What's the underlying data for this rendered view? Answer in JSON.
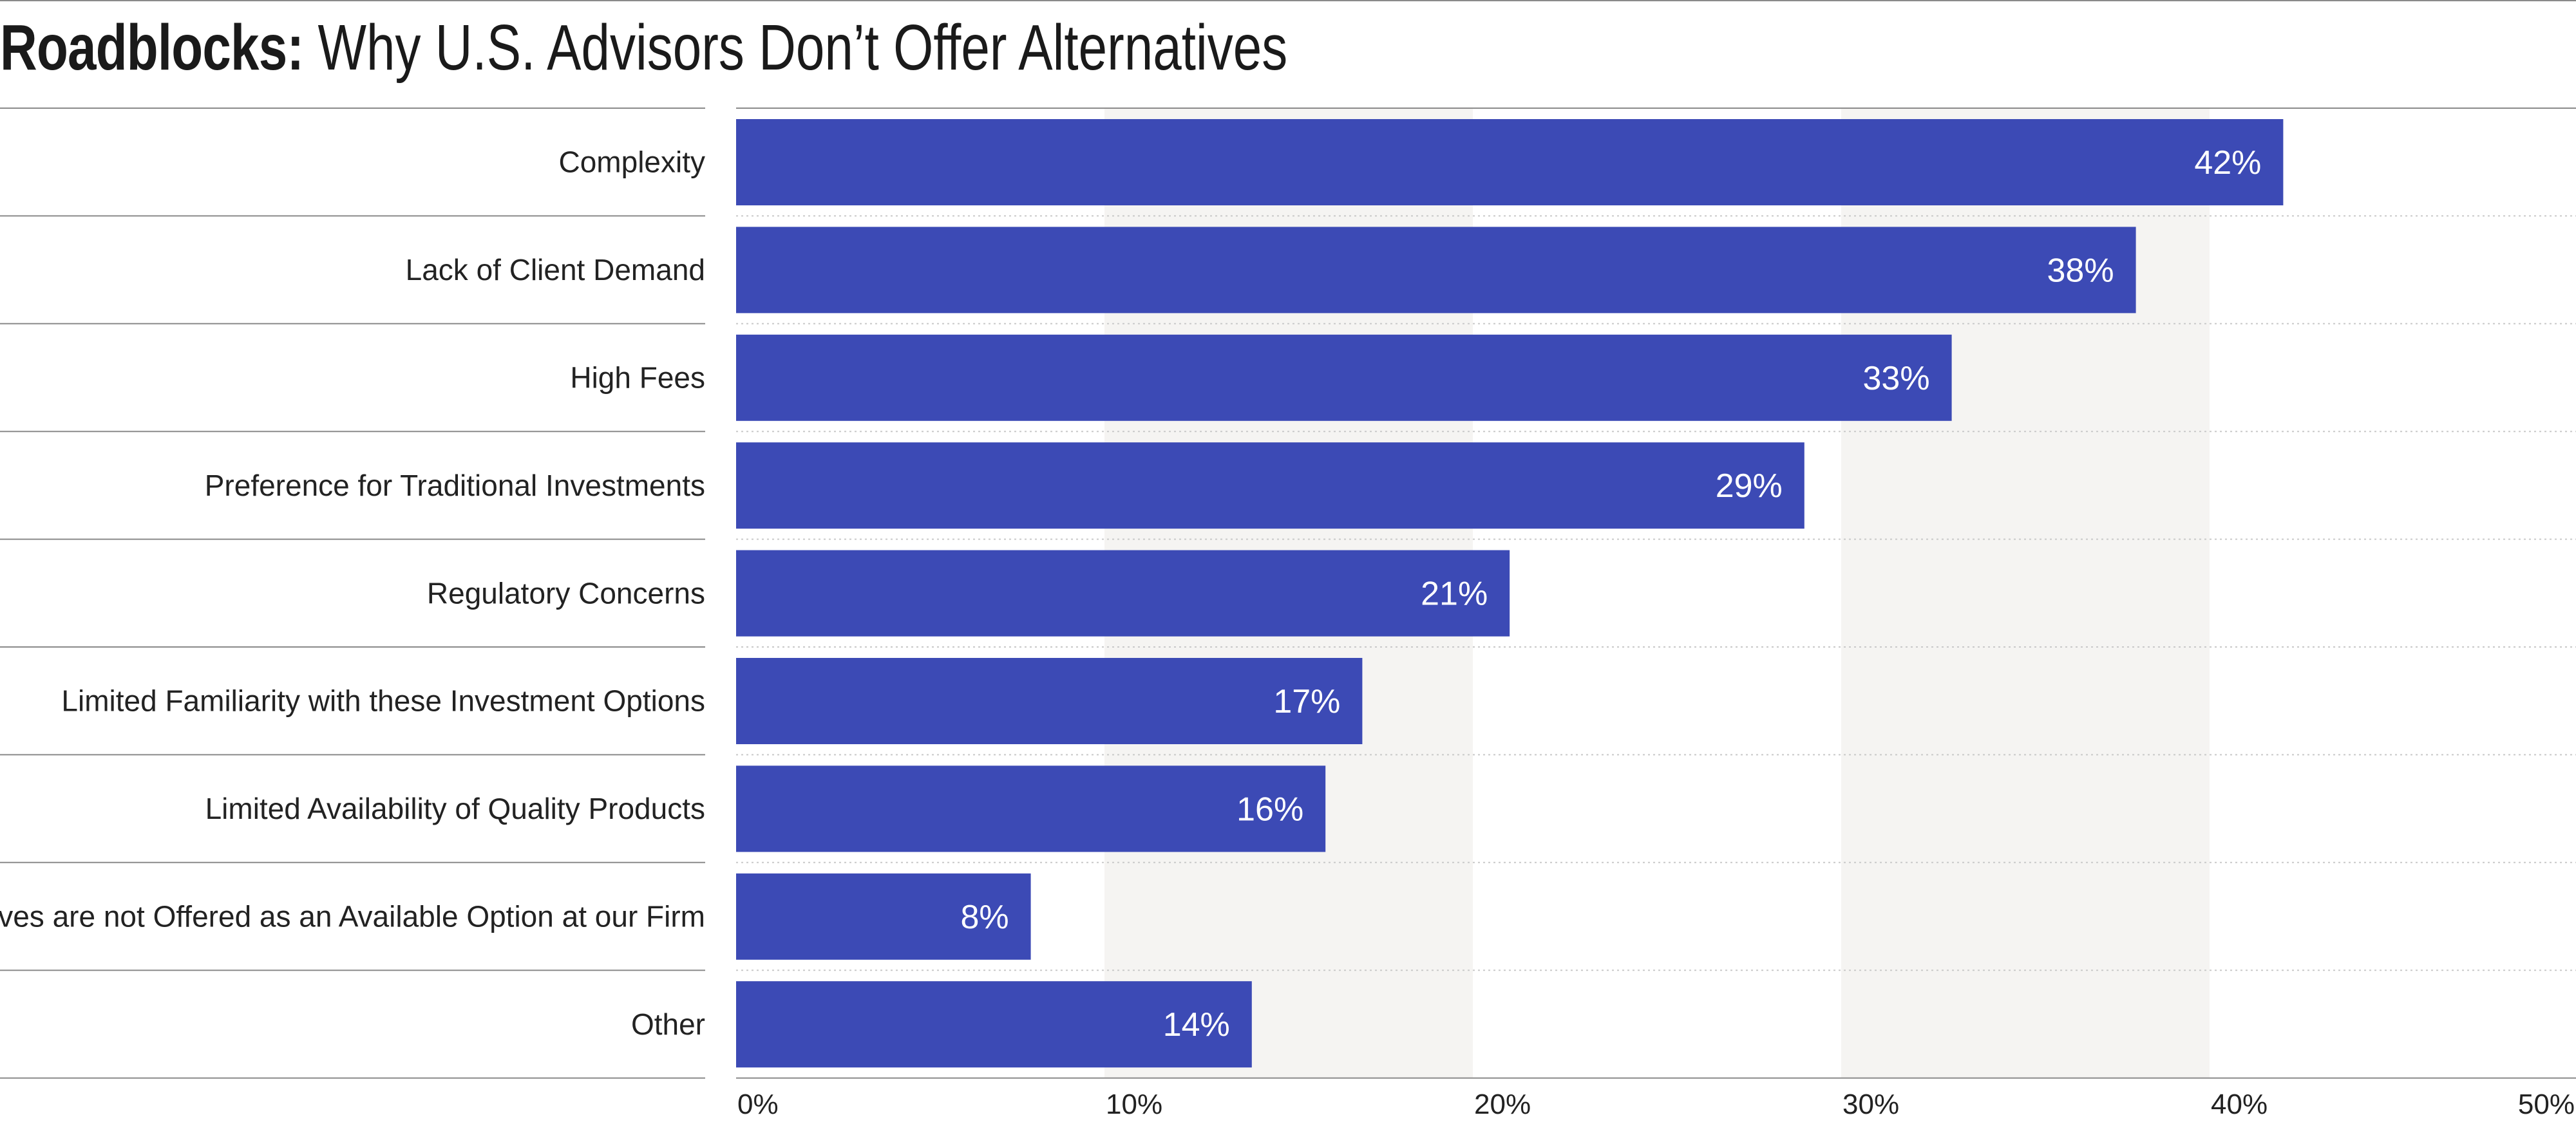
{
  "title": {
    "bold": "Roadblocks:",
    "rest": "Why U.S. Advisors Don’t Offer Alternatives"
  },
  "colors": {
    "bar": "#3c4ab5",
    "band": "#f5f4f2",
    "text": "#222222",
    "grid": "#c9c9c9",
    "separator": "#8a8a8a"
  },
  "chart_data": {
    "type": "bar",
    "orientation": "horizontal",
    "title": "Roadblocks: Why U.S. Advisors Don’t Offer Alternatives",
    "categories": [
      "Complexity",
      "Lack of Client Demand",
      "High Fees",
      "Preference for Traditional Investments",
      "Regulatory Concerns",
      "Limited Familiarity with these Investment Options",
      "Limited Availability of Quality Products",
      "Alternatives are not Offered as an Available Option at our Firm",
      "Other"
    ],
    "values": [
      42,
      38,
      33,
      29,
      21,
      17,
      16,
      8,
      14
    ],
    "value_labels": [
      "42%",
      "38%",
      "33%",
      "29%",
      "21%",
      "17%",
      "16%",
      "8%",
      "14%"
    ],
    "xlim": [
      0,
      50
    ],
    "xticks": [
      0,
      10,
      20,
      30,
      40,
      50
    ],
    "xtick_labels": [
      "0%",
      "10%",
      "20%",
      "30%",
      "40%",
      "50%"
    ],
    "xlabel": "",
    "ylabel": "",
    "alternating_bands": true,
    "grid": "dotted horizontal row separators",
    "legend": "none"
  }
}
